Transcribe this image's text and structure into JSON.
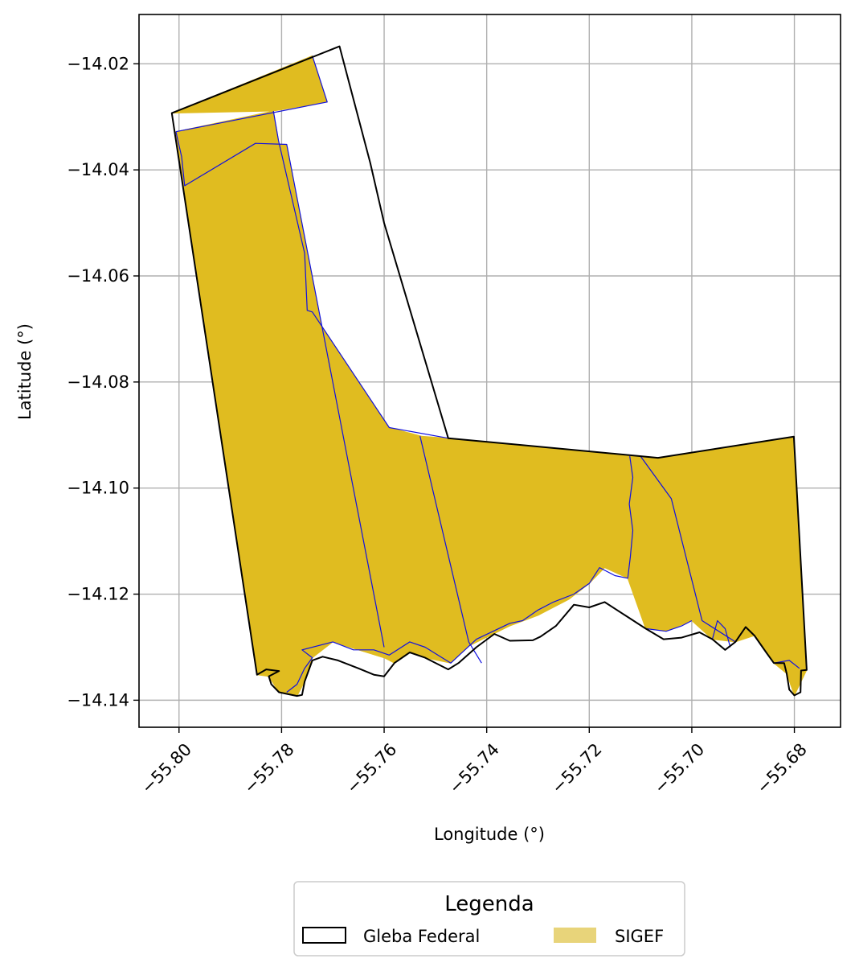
{
  "chart_data": {
    "type": "map",
    "xlabel": "Longitude (°)",
    "ylabel": "Latitude (°)",
    "xlim": [
      -55.8078,
      -55.671
    ],
    "ylim": [
      -14.1451,
      -14.0107
    ],
    "grid": true,
    "x_ticks": [
      {
        "value": -55.8,
        "label": "−55.80"
      },
      {
        "value": -55.78,
        "label": "−55.78"
      },
      {
        "value": -55.76,
        "label": "−55.76"
      },
      {
        "value": -55.74,
        "label": "−55.74"
      },
      {
        "value": -55.72,
        "label": "−55.72"
      },
      {
        "value": -55.7,
        "label": "−55.70"
      },
      {
        "value": -55.68,
        "label": "−55.68"
      }
    ],
    "y_ticks": [
      {
        "value": -14.02,
        "label": "−14.02"
      },
      {
        "value": -14.04,
        "label": "−14.04"
      },
      {
        "value": -14.06,
        "label": "−14.06"
      },
      {
        "value": -14.08,
        "label": "−14.08"
      },
      {
        "value": -14.1,
        "label": "−14.10"
      },
      {
        "value": -14.12,
        "label": "−14.12"
      },
      {
        "value": -14.14,
        "label": "−14.14"
      }
    ],
    "colors": {
      "sigef_fill": "#e0bc20",
      "sigef_legend": "#e8d47a",
      "parcel_line": "#1010e0",
      "gleba_line": "#000000",
      "grid": "#b0b0b0"
    },
    "legend": {
      "title": "Legenda",
      "placement": "bottom-center",
      "entries": [
        {
          "label": "Gleba Federal",
          "style": "outline"
        },
        {
          "label": "SIGEF",
          "style": "fill"
        }
      ]
    },
    "gleba_federal": [
      [
        -55.8014,
        -14.0293
      ],
      [
        -55.7687,
        -14.0167
      ],
      [
        -55.7627,
        -14.0387
      ],
      [
        -55.76,
        -14.05
      ],
      [
        -55.7475,
        -14.0906
      ],
      [
        -55.7066,
        -14.0943
      ],
      [
        -55.6801,
        -14.0903
      ],
      [
        -55.6776,
        -14.1343
      ],
      [
        -55.6787,
        -14.1344
      ],
      [
        -55.6788,
        -14.1385
      ],
      [
        -55.68,
        -14.1391
      ],
      [
        -55.681,
        -14.138
      ],
      [
        -55.6815,
        -14.135
      ],
      [
        -55.682,
        -14.133
      ],
      [
        -55.684,
        -14.133
      ],
      [
        -55.6855,
        -14.131
      ],
      [
        -55.6878,
        -14.1278
      ],
      [
        -55.6895,
        -14.1262
      ],
      [
        -55.6915,
        -14.129
      ],
      [
        -55.6935,
        -14.1305
      ],
      [
        -55.696,
        -14.1285
      ],
      [
        -55.6985,
        -14.1272
      ],
      [
        -55.702,
        -14.1282
      ],
      [
        -55.7055,
        -14.1285
      ],
      [
        -55.709,
        -14.1265
      ],
      [
        -55.713,
        -14.124
      ],
      [
        -55.717,
        -14.1215
      ],
      [
        -55.72,
        -14.1225
      ],
      [
        -55.723,
        -14.122
      ],
      [
        -55.7265,
        -14.126
      ],
      [
        -55.7295,
        -14.128
      ],
      [
        -55.731,
        -14.1287
      ],
      [
        -55.7355,
        -14.1288
      ],
      [
        -55.7385,
        -14.1275
      ],
      [
        -55.742,
        -14.13
      ],
      [
        -55.7455,
        -14.133
      ],
      [
        -55.7475,
        -14.1342
      ],
      [
        -55.752,
        -14.132
      ],
      [
        -55.755,
        -14.131
      ],
      [
        -55.758,
        -14.133
      ],
      [
        -55.76,
        -14.1355
      ],
      [
        -55.762,
        -14.1352
      ],
      [
        -55.765,
        -14.134
      ],
      [
        -55.769,
        -14.1325
      ],
      [
        -55.772,
        -14.1318
      ],
      [
        -55.774,
        -14.1325
      ],
      [
        -55.7755,
        -14.1365
      ],
      [
        -55.776,
        -14.139
      ],
      [
        -55.777,
        -14.1392
      ],
      [
        -55.779,
        -14.1388
      ],
      [
        -55.7805,
        -14.1385
      ],
      [
        -55.782,
        -14.137
      ],
      [
        -55.7825,
        -14.1355
      ],
      [
        -55.7805,
        -14.1345
      ],
      [
        -55.783,
        -14.1342
      ],
      [
        -55.7848,
        -14.1352
      ],
      [
        -55.8014,
        -14.0293
      ]
    ],
    "sigef_parcels": [
      [
        [
          -55.8014,
          -14.0293
        ],
        [
          -55.774,
          -14.0185
        ],
        [
          -55.7711,
          -14.0272
        ],
        [
          -55.7816,
          -14.0289
        ],
        [
          -55.8014,
          -14.0293
        ]
      ],
      [
        [
          -55.8006,
          -14.0328
        ],
        [
          -55.7816,
          -14.0289
        ],
        [
          -55.7806,
          -14.0345
        ],
        [
          -55.7755,
          -14.0557
        ],
        [
          -55.775,
          -14.0665
        ],
        [
          -55.774,
          -14.0668
        ],
        [
          -55.759,
          -14.0886
        ],
        [
          -55.7528,
          -14.0902
        ],
        [
          -55.7435,
          -14.1298
        ],
        [
          -55.747,
          -14.133
        ],
        [
          -55.752,
          -14.132
        ],
        [
          -55.755,
          -14.131
        ],
        [
          -55.758,
          -14.133
        ],
        [
          -55.76,
          -14.132
        ],
        [
          -55.77,
          -14.129
        ],
        [
          -55.774,
          -14.132
        ],
        [
          -55.7755,
          -14.1365
        ],
        [
          -55.777,
          -14.1392
        ],
        [
          -55.7805,
          -14.1385
        ],
        [
          -55.7825,
          -14.1355
        ],
        [
          -55.7848,
          -14.1352
        ],
        [
          -55.8006,
          -14.0328
        ]
      ],
      [
        [
          -55.8006,
          -14.0328
        ],
        [
          -55.7989,
          -14.043
        ],
        [
          -55.7851,
          -14.035
        ],
        [
          -55.779,
          -14.0352
        ],
        [
          -55.76,
          -14.132
        ],
        [
          -55.77,
          -14.129
        ],
        [
          -55.7848,
          -14.1352
        ],
        [
          -55.8006,
          -14.0328
        ]
      ],
      [
        [
          -55.753,
          -14.0902
        ],
        [
          -55.7475,
          -14.0906
        ],
        [
          -55.7121,
          -14.094
        ],
        [
          -55.7122,
          -14.1
        ],
        [
          -55.7115,
          -14.11
        ],
        [
          -55.7125,
          -14.117
        ],
        [
          -55.717,
          -14.115
        ],
        [
          -55.72,
          -14.118
        ],
        [
          -55.724,
          -14.121
        ],
        [
          -55.73,
          -14.124
        ],
        [
          -55.7355,
          -14.126
        ],
        [
          -55.7435,
          -14.1298
        ],
        [
          -55.753,
          -14.0902
        ]
      ],
      [
        [
          -55.7121,
          -14.094
        ],
        [
          -55.7066,
          -14.0943
        ],
        [
          -55.6801,
          -14.0903
        ],
        [
          -55.6776,
          -14.1343
        ],
        [
          -55.68,
          -14.1391
        ],
        [
          -55.6815,
          -14.135
        ],
        [
          -55.684,
          -14.133
        ],
        [
          -55.6878,
          -14.1278
        ],
        [
          -55.6915,
          -14.129
        ],
        [
          -55.696,
          -14.1285
        ],
        [
          -55.7,
          -14.125
        ],
        [
          -55.705,
          -14.127
        ],
        [
          -55.709,
          -14.1265
        ],
        [
          -55.7125,
          -14.117
        ],
        [
          -55.7115,
          -14.11
        ],
        [
          -55.7122,
          -14.1
        ],
        [
          -55.7121,
          -14.094
        ]
      ]
    ],
    "parcel_lines": [
      [
        [
          -55.7816,
          -14.0289
        ],
        [
          -55.7806,
          -14.0345
        ],
        [
          -55.7755,
          -14.0557
        ],
        [
          -55.775,
          -14.0665
        ],
        [
          -55.774,
          -14.0668
        ],
        [
          -55.759,
          -14.0886
        ],
        [
          -55.7475,
          -14.0906
        ]
      ],
      [
        [
          -55.8006,
          -14.0328
        ],
        [
          -55.7711,
          -14.0272
        ],
        [
          -55.774,
          -14.0185
        ]
      ],
      [
        [
          -55.8006,
          -14.0328
        ],
        [
          -55.7995,
          -14.0375
        ],
        [
          -55.7989,
          -14.043
        ],
        [
          -55.7851,
          -14.035
        ],
        [
          -55.779,
          -14.0352
        ],
        [
          -55.76,
          -14.13
        ]
      ],
      [
        [
          -55.753,
          -14.0902
        ],
        [
          -55.7435,
          -14.129
        ],
        [
          -55.741,
          -14.133
        ]
      ],
      [
        [
          -55.7121,
          -14.094
        ],
        [
          -55.7115,
          -14.098
        ],
        [
          -55.7122,
          -14.103
        ],
        [
          -55.7115,
          -14.108
        ],
        [
          -55.712,
          -14.113
        ],
        [
          -55.7125,
          -14.117
        ],
        [
          -55.715,
          -14.1165
        ],
        [
          -55.718,
          -14.115
        ],
        [
          -55.72,
          -14.118
        ],
        [
          -55.723,
          -14.12
        ],
        [
          -55.727,
          -14.1215
        ],
        [
          -55.73,
          -14.123
        ],
        [
          -55.733,
          -14.125
        ],
        [
          -55.7355,
          -14.1255
        ],
        [
          -55.742,
          -14.1285
        ],
        [
          -55.747,
          -14.133
        ],
        [
          -55.752,
          -14.13
        ],
        [
          -55.755,
          -14.129
        ],
        [
          -55.759,
          -14.1315
        ],
        [
          -55.762,
          -14.1305
        ],
        [
          -55.766,
          -14.1305
        ],
        [
          -55.77,
          -14.129
        ],
        [
          -55.776,
          -14.1305
        ],
        [
          -55.774,
          -14.132
        ],
        [
          -55.7755,
          -14.134
        ],
        [
          -55.777,
          -14.137
        ],
        [
          -55.779,
          -14.1385
        ]
      ],
      [
        [
          -55.71,
          -14.094
        ],
        [
          -55.704,
          -14.102
        ],
        [
          -55.698,
          -14.125
        ],
        [
          -55.6915,
          -14.129
        ]
      ],
      [
        [
          -55.709,
          -14.1265
        ],
        [
          -55.705,
          -14.127
        ],
        [
          -55.702,
          -14.126
        ],
        [
          -55.7,
          -14.125
        ]
      ],
      [
        [
          -55.696,
          -14.1285
        ],
        [
          -55.695,
          -14.125
        ],
        [
          -55.6935,
          -14.1265
        ],
        [
          -55.6925,
          -14.13
        ]
      ],
      [
        [
          -55.684,
          -14.133
        ],
        [
          -55.681,
          -14.1325
        ],
        [
          -55.679,
          -14.134
        ]
      ]
    ]
  }
}
